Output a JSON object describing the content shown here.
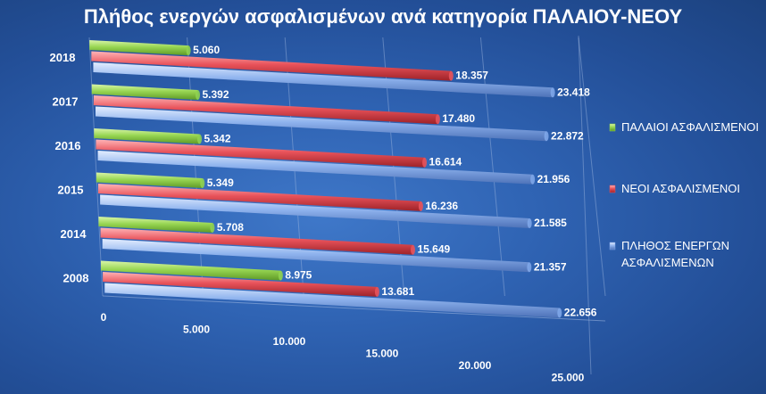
{
  "chart_data": {
    "type": "bar",
    "orientation": "horizontal",
    "title": "Πλήθος ενεργών ασφαλισμένων ανά κατηγορία ΠΑΛΑΙΟΥ-ΝΕΟΥ",
    "categories": [
      "2008",
      "2014",
      "2015",
      "2016",
      "2017",
      "2018"
    ],
    "series": [
      {
        "name": "ΠΑΛΑΙΟΙ ΑΣΦΑΛΙΣΜΕΝΟΙ",
        "color": "#8fd14f",
        "values": [
          8975,
          5708,
          5349,
          5342,
          5392,
          5060
        ],
        "labels": [
          "8.975",
          "5.708",
          "5.349",
          "5.342",
          "5.392",
          "5.060"
        ]
      },
      {
        "name": "ΝΕΟΙ ΑΣΦΑΛΙΣΜΕΝΟΙ",
        "color": "#e8525a",
        "values": [
          13681,
          15649,
          16236,
          16614,
          17480,
          18357
        ],
        "labels": [
          "13.681",
          "15.649",
          "16.236",
          "16.614",
          "17.480",
          "18.357"
        ]
      },
      {
        "name": "ΠΛΗΘΟΣ ΕΝΕΡΓΩΝ ΑΣΦΑΛΙΣΜΕΝΩΝ",
        "legend_lines": [
          "ΠΛΗΘΟΣ ΕΝΕΡΓΩΝ",
          "ΑΣΦΑΛΙΣΜΕΝΩΝ"
        ],
        "color": "#7ea6e8",
        "values": [
          22656,
          21357,
          21585,
          21956,
          22872,
          23418
        ],
        "labels": [
          "22.656",
          "21.357",
          "21.585",
          "21.956",
          "22.872",
          "23.418"
        ]
      }
    ],
    "xlim": [
      0,
      25000
    ],
    "ticks": [
      0,
      5000,
      10000,
      15000,
      20000,
      25000
    ],
    "tick_labels": [
      "0",
      "5.000",
      "10.000",
      "15.000",
      "20.000",
      "25.000"
    ],
    "legend_position": "right",
    "grid": true
  }
}
